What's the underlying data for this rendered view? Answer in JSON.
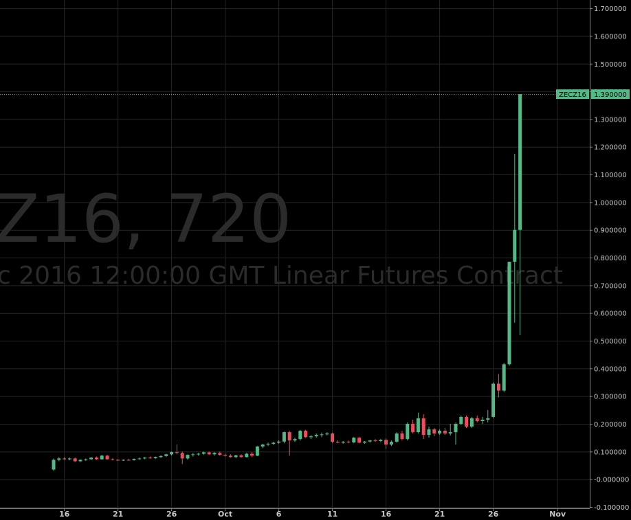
{
  "chart_data": {
    "type": "candlestick",
    "watermark": [
      "Z16, 720",
      "c 2016 12:00:00 GMT Linear Futures Contract"
    ],
    "categories": [
      null,
      null,
      "16",
      null,
      null,
      null,
      null,
      null,
      null,
      null,
      null,
      null,
      "21",
      null,
      null,
      null,
      null,
      null,
      null,
      null,
      null,
      null,
      "26",
      null,
      null,
      null,
      null,
      null,
      null,
      null,
      null,
      null,
      "Oct",
      null,
      null,
      null,
      null,
      null,
      null,
      null,
      null,
      null,
      "6",
      null,
      null,
      null,
      null,
      null,
      null,
      null,
      null,
      null,
      "11",
      null,
      null,
      null,
      null,
      null,
      null,
      null,
      null,
      null,
      "16",
      null,
      null,
      null,
      null,
      null,
      null,
      null,
      null,
      null,
      "21",
      null,
      null,
      null,
      null,
      null,
      null,
      null,
      null,
      null,
      "26",
      null,
      null,
      null,
      null,
      null,
      null,
      null,
      null,
      null,
      null,
      null,
      "Nov",
      null,
      null,
      null,
      null,
      null,
      null
    ],
    "open": [
      0.035,
      0.07,
      0.075,
      0.072,
      0.075,
      0.065,
      0.07,
      0.072,
      0.078,
      0.072,
      0.085,
      0.072,
      0.07,
      0.068,
      0.07,
      0.069,
      0.073,
      0.075,
      0.078,
      0.076,
      0.08,
      0.084,
      0.09,
      0.098,
      0.095,
      0.075,
      0.088,
      0.09,
      0.092,
      0.097,
      0.09,
      0.095,
      0.088,
      0.085,
      0.08,
      0.086,
      0.08,
      0.092,
      0.085,
      0.118,
      0.125,
      0.128,
      0.132,
      0.136,
      0.17,
      0.14,
      0.145,
      0.175,
      0.152,
      0.155,
      0.16,
      0.162,
      0.165,
      0.135,
      0.132,
      0.135,
      0.133,
      0.15,
      0.132,
      0.136,
      0.14,
      0.138,
      0.142,
      0.125,
      0.135,
      0.165,
      0.145,
      0.2,
      0.17,
      0.22,
      0.16,
      0.18,
      0.165,
      0.175,
      0.165,
      0.17,
      0.2,
      0.225,
      0.19,
      0.22,
      0.21,
      0.215,
      0.225,
      0.345,
      0.32,
      0.415,
      0.785,
      0.9,
      null,
      null,
      null,
      null,
      null,
      null,
      null,
      null,
      null,
      null,
      null,
      null,
      null
    ],
    "high": [
      0.075,
      0.08,
      0.08,
      0.078,
      0.078,
      0.072,
      0.075,
      0.08,
      0.082,
      0.088,
      0.088,
      0.075,
      0.073,
      0.072,
      0.074,
      0.075,
      0.078,
      0.08,
      0.082,
      0.082,
      0.086,
      0.092,
      0.1,
      0.125,
      0.1,
      0.09,
      0.095,
      0.095,
      0.1,
      0.1,
      0.098,
      0.1,
      0.092,
      0.09,
      0.088,
      0.09,
      0.095,
      0.098,
      0.12,
      0.128,
      0.132,
      0.135,
      0.14,
      0.172,
      0.175,
      0.15,
      0.178,
      0.178,
      0.16,
      0.165,
      0.168,
      0.17,
      0.168,
      0.14,
      0.138,
      0.14,
      0.152,
      0.152,
      0.138,
      0.142,
      0.145,
      0.145,
      0.148,
      0.14,
      0.17,
      0.175,
      0.205,
      0.215,
      0.24,
      0.235,
      0.19,
      0.185,
      0.18,
      0.185,
      0.2,
      0.205,
      0.23,
      0.23,
      0.225,
      0.23,
      0.225,
      0.25,
      0.35,
      0.38,
      0.42,
      0.785,
      1.175,
      1.39,
      null,
      null,
      null,
      null,
      null,
      null,
      null,
      null,
      null,
      null,
      null,
      null,
      null
    ],
    "low": [
      0.03,
      0.065,
      0.07,
      0.068,
      0.062,
      0.062,
      0.066,
      0.07,
      0.07,
      0.07,
      0.07,
      0.068,
      0.066,
      0.066,
      0.067,
      0.067,
      0.07,
      0.072,
      0.074,
      0.073,
      0.077,
      0.08,
      0.086,
      0.09,
      0.055,
      0.07,
      0.082,
      0.085,
      0.088,
      0.088,
      0.085,
      0.085,
      0.082,
      0.078,
      0.076,
      0.078,
      0.078,
      0.08,
      0.083,
      0.112,
      0.12,
      0.124,
      0.128,
      0.13,
      0.085,
      0.135,
      0.14,
      0.15,
      0.145,
      0.15,
      0.152,
      0.158,
      0.13,
      0.13,
      0.128,
      0.13,
      0.13,
      0.13,
      0.128,
      0.132,
      0.135,
      0.134,
      0.11,
      0.12,
      0.132,
      0.14,
      0.14,
      0.165,
      0.165,
      0.145,
      0.15,
      0.155,
      0.16,
      0.16,
      0.158,
      0.125,
      0.195,
      0.185,
      0.185,
      0.205,
      0.2,
      0.205,
      0.22,
      0.295,
      0.315,
      0.41,
      0.565,
      0.52,
      null,
      null,
      null,
      null,
      null,
      null,
      null,
      null,
      null,
      null,
      null,
      null,
      null
    ],
    "close": [
      0.07,
      0.075,
      0.072,
      0.075,
      0.065,
      0.07,
      0.072,
      0.078,
      0.072,
      0.085,
      0.072,
      0.07,
      0.068,
      0.07,
      0.069,
      0.073,
      0.075,
      0.078,
      0.076,
      0.08,
      0.084,
      0.09,
      0.098,
      0.095,
      0.075,
      0.088,
      0.09,
      0.092,
      0.097,
      0.09,
      0.095,
      0.088,
      0.085,
      0.08,
      0.086,
      0.08,
      0.092,
      0.085,
      0.118,
      0.125,
      0.128,
      0.132,
      0.136,
      0.17,
      0.14,
      0.145,
      0.175,
      0.152,
      0.155,
      0.16,
      0.162,
      0.165,
      0.135,
      0.132,
      0.135,
      0.133,
      0.15,
      0.132,
      0.136,
      0.14,
      0.138,
      0.142,
      0.125,
      0.135,
      0.165,
      0.145,
      0.2,
      0.17,
      0.22,
      0.16,
      0.18,
      0.165,
      0.175,
      0.165,
      0.17,
      0.2,
      0.225,
      0.19,
      0.22,
      0.21,
      0.215,
      0.22,
      0.345,
      0.32,
      0.415,
      0.785,
      0.9,
      1.39,
      null,
      null,
      null,
      null,
      null,
      null,
      null,
      null,
      null,
      null,
      null,
      null,
      null
    ],
    "up_color": "#53b987",
    "down_color": "#eb4d5c",
    "ylim": [
      -0.105,
      1.73
    ],
    "yticks": [
      {
        "value": 1.7,
        "label": "1.700000"
      },
      {
        "value": 1.6,
        "label": "1.600000"
      },
      {
        "value": 1.5,
        "label": "1.500000"
      },
      {
        "value": 1.4,
        "label": "1.400000"
      },
      {
        "value": 1.3,
        "label": "1.300000"
      },
      {
        "value": 1.2,
        "label": "1.200000"
      },
      {
        "value": 1.1,
        "label": "1.100000"
      },
      {
        "value": 1.0,
        "label": "1.000000"
      },
      {
        "value": 0.9,
        "label": "0.900000"
      },
      {
        "value": 0.8,
        "label": "0.800000"
      },
      {
        "value": 0.7,
        "label": "0.700000"
      },
      {
        "value": 0.6,
        "label": "0.600000"
      },
      {
        "value": 0.5,
        "label": "0.500000"
      },
      {
        "value": 0.4,
        "label": "0.400000"
      },
      {
        "value": 0.3,
        "label": "0.300000"
      },
      {
        "value": 0.2,
        "label": "0.200000"
      },
      {
        "value": 0.1,
        "label": "0.100000"
      },
      {
        "value": 0,
        "label": "-0.000000"
      },
      {
        "value": -0.1,
        "label": "-0.100000"
      }
    ],
    "grid": true,
    "last_price": {
      "symbol": "ZECZ16",
      "value": 1.39,
      "label": "1.390000",
      "color": "#53b987"
    }
  }
}
